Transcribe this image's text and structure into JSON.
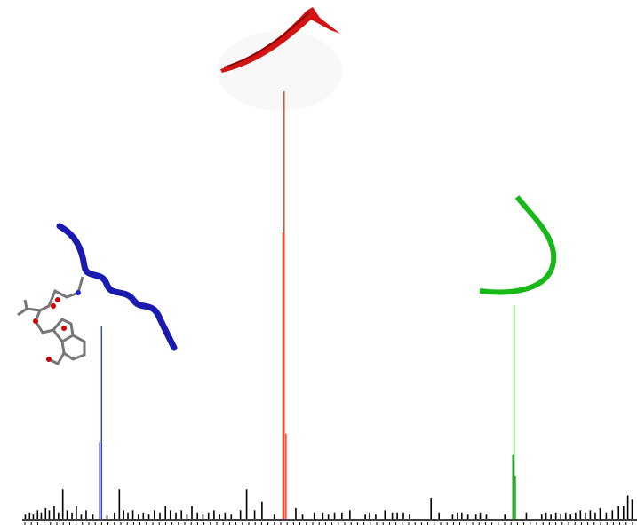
{
  "chart_data": {
    "type": "spectrum",
    "xlim": [
      0,
      100
    ],
    "ylim": [
      0,
      100
    ],
    "series": [
      {
        "color": "#000000",
        "x": [
          0.5,
          1.2,
          1.8,
          2.5,
          3.1,
          3.8,
          4.4,
          5.2,
          5.9,
          6.6,
          7.3,
          8.1,
          8.8,
          9.6,
          10.4,
          11.5,
          13.8,
          15.0,
          15.8,
          16.5,
          17.2,
          18.0,
          18.9,
          19.7,
          20.6,
          21.5,
          22.4,
          23.3,
          24.1,
          25.0,
          25.9,
          26.8,
          27.6,
          28.5,
          29.4,
          30.3,
          31.2,
          32.1,
          33.0,
          34.0,
          35.5,
          36.5,
          37.8,
          39.0,
          41.0,
          44.5,
          45.6,
          47.5,
          48.9,
          49.8,
          50.8,
          52.0,
          53.3,
          55.8,
          56.5,
          57.5,
          59.0,
          60.2,
          61.0,
          62.0,
          63.0,
          66.5,
          67.8,
          70.0,
          70.8,
          71.5,
          72.5,
          73.8,
          74.5,
          75.5,
          78.5,
          82.0,
          84.5,
          85.2,
          86.0,
          86.8,
          87.6,
          88.4,
          89.2,
          90.0,
          90.8,
          91.6,
          92.4,
          93.2,
          94.0,
          95.0,
          96.0,
          97.0,
          97.8,
          98.5,
          99.2
        ],
        "values": [
          1,
          1.5,
          1,
          2,
          1.5,
          2.5,
          2,
          3,
          1.5,
          7,
          2,
          1.5,
          3,
          1,
          2,
          1,
          0.8,
          1.5,
          7,
          2,
          1.5,
          2,
          1,
          1.5,
          1,
          2,
          1.5,
          3,
          2,
          1.5,
          2,
          1,
          3,
          1.5,
          1,
          1.5,
          2,
          1,
          1.5,
          1,
          2,
          7,
          2,
          4,
          1,
          2.5,
          1,
          1.5,
          1.5,
          1,
          1.5,
          1.5,
          2,
          1,
          1.5,
          1,
          2,
          1.5,
          1.5,
          1.5,
          1,
          5,
          1.5,
          1,
          1.5,
          1.5,
          1,
          1,
          1.5,
          1,
          1,
          1.5,
          1,
          1.5,
          1,
          1.5,
          1,
          1.5,
          1,
          1.5,
          2,
          1.5,
          2,
          1.5,
          2.5,
          1.5,
          2,
          3,
          3,
          5.5,
          4.5
        ]
      },
      {
        "color": "#2b3bc8",
        "x": [
          12.9,
          12.6
        ],
        "values": [
          45,
          18
        ]
      },
      {
        "color": "#f03a1c",
        "x": [
          42.6,
          42.4,
          42.9
        ],
        "values": [
          100,
          67,
          20
        ]
      },
      {
        "color": "#1a9e1a",
        "x": [
          80.0,
          79.8,
          80.2
        ],
        "values": [
          50,
          15,
          10
        ]
      }
    ]
  }
}
